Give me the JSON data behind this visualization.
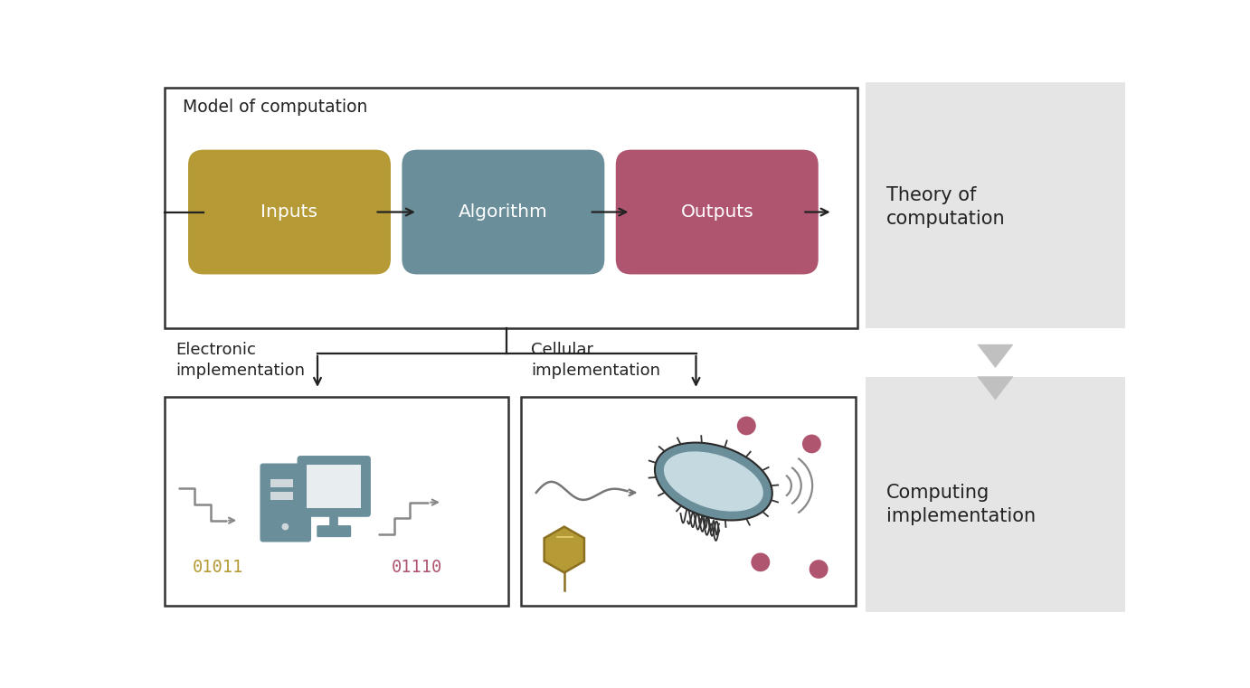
{
  "bg_color": "#ffffff",
  "gray_panel_color": "#e5e5e5",
  "inputs_color": "#b59a35",
  "algorithm_color": "#6b8f9a",
  "outputs_color": "#b05570",
  "arrow_color": "#222222",
  "title_top": "Model of computation",
  "label_inputs": "Inputs",
  "label_algorithm": "Algorithm",
  "label_outputs": "Outputs",
  "label_theory": "Theory of\ncomputation",
  "label_electronic": "Electronic\nimplementation",
  "label_cellular": "Cellular\nimplementation",
  "label_computing": "Computing\nimplementation",
  "binary_left": "01011",
  "binary_right": "01110",
  "binary_left_color": "#b59a35",
  "binary_right_color": "#b05570",
  "gray_arrow_color": "#c0c0c0",
  "text_color": "#222222",
  "bacterium_body_color": "#6b8f9a",
  "bacterium_fill_color": "#c5d9e0",
  "dot_color": "#b05570",
  "hexagon_color": "#b59a35",
  "hexagon_edge_color": "#8a7020",
  "wave_color": "#777777",
  "computer_color": "#6b8f9a",
  "signal_color": "#888888"
}
